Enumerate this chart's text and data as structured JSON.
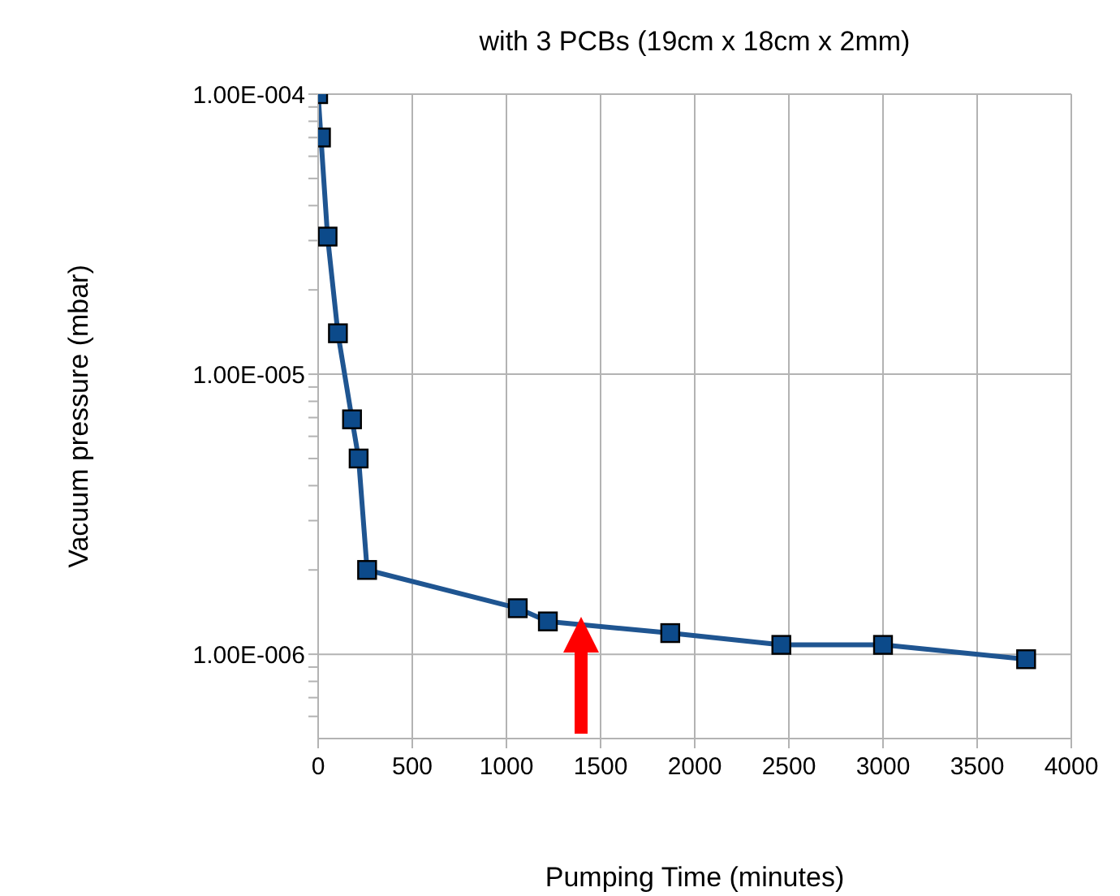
{
  "chart_data": {
    "type": "line",
    "title": "with 3 PCBs (19cm x 18cm x 2mm)",
    "xlabel": "Pumping Time (minutes)",
    "ylabel": "Vacuum pressure (mbar)",
    "x": [
      0,
      15,
      50,
      105,
      180,
      215,
      260,
      1060,
      1220,
      1870,
      2460,
      3000,
      3760
    ],
    "series": [
      {
        "color": "#1f5591",
        "values": [
          0.0001,
          7e-05,
          3.1e-05,
          1.4e-05,
          6.9e-06,
          5e-06,
          2e-06,
          1.46e-06,
          1.31e-06,
          1.19e-06,
          1.08e-06,
          1.08e-06,
          9.6e-07
        ]
      }
    ],
    "log": "y",
    "marker": "square",
    "line_style": "solid",
    "grid": true,
    "legend": false,
    "xlim": [
      0,
      4000
    ],
    "xticks": [
      0,
      500,
      1000,
      1500,
      2000,
      2500,
      3000,
      3500,
      4000
    ],
    "ylim": [
      5e-07,
      0.0001
    ],
    "yticks": [
      {
        "value": 6e-07,
        "label": null
      },
      {
        "value": 7e-07,
        "label": null
      },
      {
        "value": 8e-07,
        "label": null
      },
      {
        "value": 9e-07,
        "label": null
      },
      {
        "value": 1e-06,
        "label": "1.00E-006"
      },
      {
        "value": 2e-06,
        "label": null
      },
      {
        "value": 3e-06,
        "label": null
      },
      {
        "value": 4e-06,
        "label": null
      },
      {
        "value": 5e-06,
        "label": null
      },
      {
        "value": 6e-06,
        "label": null
      },
      {
        "value": 7e-06,
        "label": null
      },
      {
        "value": 8e-06,
        "label": null
      },
      {
        "value": 9e-06,
        "label": null
      },
      {
        "value": 1e-05,
        "label": "1.00E-005"
      },
      {
        "value": 2e-05,
        "label": null
      },
      {
        "value": 3e-05,
        "label": null
      },
      {
        "value": 4e-05,
        "label": null
      },
      {
        "value": 5e-05,
        "label": null
      },
      {
        "value": 6e-05,
        "label": null
      },
      {
        "value": 7e-05,
        "label": null
      },
      {
        "value": 8e-05,
        "label": null
      },
      {
        "value": 9e-05,
        "label": null
      },
      {
        "value": 0.0001,
        "label": "1.00E-004"
      }
    ]
  }
}
